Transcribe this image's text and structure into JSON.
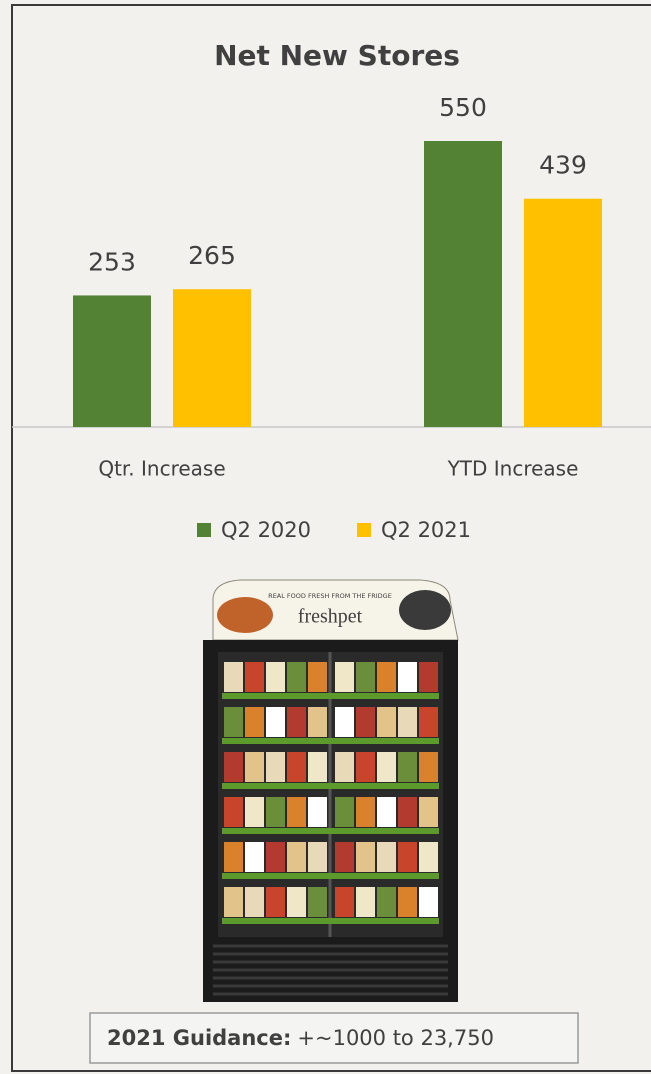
{
  "chart_data": {
    "type": "bar",
    "title": "Net New Stores",
    "categories": [
      "Qtr. Increase",
      "YTD Increase"
    ],
    "series": [
      {
        "name": "Q2 2020",
        "color": "#548235",
        "values": [
          253,
          550
        ]
      },
      {
        "name": "Q2 2021",
        "color": "#ffc000",
        "values": [
          265,
          439
        ]
      }
    ],
    "legend": "bottom"
  },
  "fridge": {
    "tagline": "REAL FOOD FRESH FROM THE FRIDGE",
    "brand": "freshpet"
  },
  "guidance": {
    "label": "2021 Guidance:",
    "text": "+~1000 to 23,750"
  }
}
